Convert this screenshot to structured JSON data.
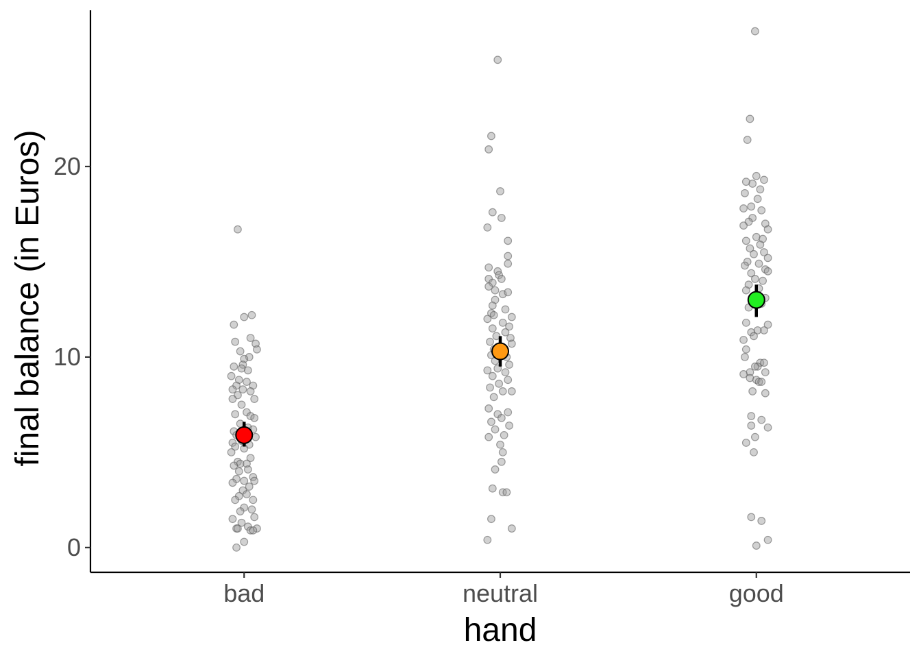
{
  "chart_data": {
    "type": "scatter",
    "xlabel": "hand",
    "ylabel": "final balance (in Euros)",
    "categories": [
      "bad",
      "neutral",
      "good"
    ],
    "ylim": [
      -1.3,
      28.2
    ],
    "yticks": [
      0,
      10,
      20
    ],
    "grid": false,
    "legend": "none",
    "colors": {
      "point": "#999999",
      "bad": "#ff0000",
      "neutral": "#ff9912",
      "good": "#22ee22"
    },
    "summary": [
      {
        "category": "bad",
        "mean": 5.9,
        "lower": 5.3,
        "upper": 6.6
      },
      {
        "category": "neutral",
        "mean": 10.3,
        "lower": 9.5,
        "upper": 11.1
      },
      {
        "category": "good",
        "mean": 13.0,
        "lower": 12.1,
        "upper": 13.8
      }
    ],
    "points": {
      "bad": [
        {
          "x": -0.05,
          "y": 16.7
        },
        {
          "x": 0.06,
          "y": 12.2
        },
        {
          "x": 0.0,
          "y": 12.1
        },
        {
          "x": -0.08,
          "y": 11.7
        },
        {
          "x": 0.05,
          "y": 11.0
        },
        {
          "x": -0.07,
          "y": 10.8
        },
        {
          "x": 0.09,
          "y": 10.7
        },
        {
          "x": 0.1,
          "y": 10.4
        },
        {
          "x": -0.03,
          "y": 10.3
        },
        {
          "x": 0.04,
          "y": 10.0
        },
        {
          "x": 0.0,
          "y": 9.9
        },
        {
          "x": -0.01,
          "y": 9.6
        },
        {
          "x": -0.08,
          "y": 9.5
        },
        {
          "x": -0.02,
          "y": 9.4
        },
        {
          "x": 0.03,
          "y": 9.3
        },
        {
          "x": -0.1,
          "y": 9.0
        },
        {
          "x": -0.04,
          "y": 8.8
        },
        {
          "x": 0.02,
          "y": 8.7
        },
        {
          "x": -0.06,
          "y": 8.5
        },
        {
          "x": 0.07,
          "y": 8.5
        },
        {
          "x": -0.09,
          "y": 8.3
        },
        {
          "x": -0.01,
          "y": 8.3
        },
        {
          "x": 0.05,
          "y": 8.2
        },
        {
          "x": -0.05,
          "y": 8.0
        },
        {
          "x": 0.08,
          "y": 7.8
        },
        {
          "x": -0.09,
          "y": 7.8
        },
        {
          "x": -0.02,
          "y": 7.5
        },
        {
          "x": 0.02,
          "y": 7.1
        },
        {
          "x": -0.07,
          "y": 7.0
        },
        {
          "x": 0.05,
          "y": 6.9
        },
        {
          "x": 0.08,
          "y": 6.8
        },
        {
          "x": -0.03,
          "y": 6.5
        },
        {
          "x": 0.03,
          "y": 6.3
        },
        {
          "x": -0.08,
          "y": 6.1
        },
        {
          "x": 0.07,
          "y": 6.2
        },
        {
          "x": -0.06,
          "y": 5.9
        },
        {
          "x": 0.09,
          "y": 5.8
        },
        {
          "x": -0.09,
          "y": 5.5
        },
        {
          "x": -0.02,
          "y": 5.6
        },
        {
          "x": 0.04,
          "y": 5.4
        },
        {
          "x": -0.07,
          "y": 5.3
        },
        {
          "x": 0.0,
          "y": 5.2
        },
        {
          "x": -0.1,
          "y": 5.0
        },
        {
          "x": 0.05,
          "y": 4.7
        },
        {
          "x": -0.05,
          "y": 4.5
        },
        {
          "x": -0.03,
          "y": 4.4
        },
        {
          "x": 0.02,
          "y": 4.4
        },
        {
          "x": -0.08,
          "y": 4.3
        },
        {
          "x": -0.04,
          "y": 4.0
        },
        {
          "x": 0.03,
          "y": 4.1
        },
        {
          "x": 0.07,
          "y": 3.7
        },
        {
          "x": -0.06,
          "y": 3.6
        },
        {
          "x": 0.0,
          "y": 3.5
        },
        {
          "x": -0.09,
          "y": 3.4
        },
        {
          "x": 0.08,
          "y": 3.5
        },
        {
          "x": -0.01,
          "y": 3.0
        },
        {
          "x": 0.04,
          "y": 3.2
        },
        {
          "x": 0.02,
          "y": 2.8
        },
        {
          "x": -0.04,
          "y": 2.7
        },
        {
          "x": 0.07,
          "y": 2.5
        },
        {
          "x": -0.07,
          "y": 2.5
        },
        {
          "x": 0.0,
          "y": 2.1
        },
        {
          "x": -0.03,
          "y": 1.9
        },
        {
          "x": 0.06,
          "y": 2.0
        },
        {
          "x": -0.09,
          "y": 1.5
        },
        {
          "x": 0.08,
          "y": 1.6
        },
        {
          "x": -0.02,
          "y": 1.3
        },
        {
          "x": 0.03,
          "y": 1.1
        },
        {
          "x": -0.06,
          "y": 1.0
        },
        {
          "x": 0.05,
          "y": 0.9
        },
        {
          "x": 0.1,
          "y": 1.0
        },
        {
          "x": -0.05,
          "y": 1.0
        },
        {
          "x": 0.0,
          "y": 0.3
        },
        {
          "x": -0.06,
          "y": 0.0
        },
        {
          "x": 0.07,
          "y": 0.9
        }
      ],
      "neutral": [
        {
          "x": -0.02,
          "y": 25.6
        },
        {
          "x": -0.07,
          "y": 21.6
        },
        {
          "x": -0.09,
          "y": 20.9
        },
        {
          "x": 0.0,
          "y": 18.7
        },
        {
          "x": -0.06,
          "y": 17.6
        },
        {
          "x": 0.01,
          "y": 17.3
        },
        {
          "x": -0.1,
          "y": 16.8
        },
        {
          "x": 0.06,
          "y": 16.1
        },
        {
          "x": 0.06,
          "y": 15.3
        },
        {
          "x": 0.06,
          "y": 14.9
        },
        {
          "x": -0.09,
          "y": 14.7
        },
        {
          "x": -0.02,
          "y": 14.5
        },
        {
          "x": -0.01,
          "y": 14.3
        },
        {
          "x": 0.01,
          "y": 14.1
        },
        {
          "x": -0.09,
          "y": 14.1
        },
        {
          "x": -0.06,
          "y": 13.9
        },
        {
          "x": -0.09,
          "y": 13.7
        },
        {
          "x": -0.04,
          "y": 13.5
        },
        {
          "x": 0.02,
          "y": 13.3
        },
        {
          "x": 0.06,
          "y": 13.4
        },
        {
          "x": -0.04,
          "y": 13.0
        },
        {
          "x": -0.06,
          "y": 12.7
        },
        {
          "x": 0.04,
          "y": 12.5
        },
        {
          "x": -0.07,
          "y": 12.3
        },
        {
          "x": -0.05,
          "y": 12.2
        },
        {
          "x": 0.09,
          "y": 12.1
        },
        {
          "x": -0.1,
          "y": 12.0
        },
        {
          "x": 0.02,
          "y": 11.8
        },
        {
          "x": 0.07,
          "y": 11.6
        },
        {
          "x": -0.06,
          "y": 11.5
        },
        {
          "x": 0.04,
          "y": 11.3
        },
        {
          "x": -0.03,
          "y": 11.1
        },
        {
          "x": 0.08,
          "y": 11.0
        },
        {
          "x": -0.08,
          "y": 10.8
        },
        {
          "x": 0.09,
          "y": 10.7
        },
        {
          "x": -0.05,
          "y": 10.4
        },
        {
          "x": 0.02,
          "y": 10.3
        },
        {
          "x": -0.07,
          "y": 10.1
        },
        {
          "x": 0.05,
          "y": 10.0
        },
        {
          "x": -0.04,
          "y": 9.8
        },
        {
          "x": 0.07,
          "y": 9.6
        },
        {
          "x": -0.02,
          "y": 9.4
        },
        {
          "x": -0.1,
          "y": 9.3
        },
        {
          "x": 0.04,
          "y": 9.2
        },
        {
          "x": -0.06,
          "y": 9.0
        },
        {
          "x": 0.06,
          "y": 8.8
        },
        {
          "x": -0.01,
          "y": 8.6
        },
        {
          "x": -0.08,
          "y": 8.4
        },
        {
          "x": 0.02,
          "y": 8.2
        },
        {
          "x": 0.09,
          "y": 8.2
        },
        {
          "x": -0.05,
          "y": 7.9
        },
        {
          "x": -0.09,
          "y": 7.3
        },
        {
          "x": 0.06,
          "y": 7.1
        },
        {
          "x": -0.02,
          "y": 7.0
        },
        {
          "x": 0.01,
          "y": 6.8
        },
        {
          "x": -0.07,
          "y": 6.6
        },
        {
          "x": 0.07,
          "y": 6.4
        },
        {
          "x": -0.04,
          "y": 6.2
        },
        {
          "x": 0.03,
          "y": 5.9
        },
        {
          "x": -0.09,
          "y": 5.8
        },
        {
          "x": 0.0,
          "y": 5.4
        },
        {
          "x": 0.02,
          "y": 5.0
        },
        {
          "x": 0.01,
          "y": 4.5
        },
        {
          "x": -0.04,
          "y": 4.1
        },
        {
          "x": -0.06,
          "y": 3.1
        },
        {
          "x": 0.02,
          "y": 2.9
        },
        {
          "x": 0.05,
          "y": 2.9
        },
        {
          "x": -0.07,
          "y": 1.5
        },
        {
          "x": 0.09,
          "y": 1.0
        },
        {
          "x": -0.1,
          "y": 0.4
        }
      ],
      "good": [
        {
          "x": -0.01,
          "y": 27.1
        },
        {
          "x": -0.05,
          "y": 22.5
        },
        {
          "x": -0.07,
          "y": 21.4
        },
        {
          "x": 0.0,
          "y": 19.5
        },
        {
          "x": -0.03,
          "y": 19.1
        },
        {
          "x": 0.06,
          "y": 19.3
        },
        {
          "x": -0.08,
          "y": 19.2
        },
        {
          "x": 0.03,
          "y": 18.8
        },
        {
          "x": -0.09,
          "y": 18.6
        },
        {
          "x": 0.01,
          "y": 18.3
        },
        {
          "x": -0.04,
          "y": 17.9
        },
        {
          "x": 0.04,
          "y": 17.7
        },
        {
          "x": -0.1,
          "y": 17.8
        },
        {
          "x": -0.03,
          "y": 17.3
        },
        {
          "x": 0.07,
          "y": 17.0
        },
        {
          "x": -0.06,
          "y": 17.1
        },
        {
          "x": 0.09,
          "y": 16.7
        },
        {
          "x": -0.1,
          "y": 16.9
        },
        {
          "x": 0.0,
          "y": 16.3
        },
        {
          "x": 0.05,
          "y": 16.2
        },
        {
          "x": -0.08,
          "y": 16.1
        },
        {
          "x": 0.03,
          "y": 15.9
        },
        {
          "x": -0.05,
          "y": 15.7
        },
        {
          "x": 0.06,
          "y": 15.5
        },
        {
          "x": -0.02,
          "y": 15.4
        },
        {
          "x": 0.09,
          "y": 15.2
        },
        {
          "x": -0.07,
          "y": 15.0
        },
        {
          "x": 0.02,
          "y": 14.9
        },
        {
          "x": -0.09,
          "y": 14.8
        },
        {
          "x": 0.07,
          "y": 14.6
        },
        {
          "x": -0.04,
          "y": 14.4
        },
        {
          "x": 0.09,
          "y": 14.5
        },
        {
          "x": -0.01,
          "y": 14.1
        },
        {
          "x": 0.05,
          "y": 14.0
        },
        {
          "x": -0.06,
          "y": 13.8
        },
        {
          "x": 0.02,
          "y": 13.6
        },
        {
          "x": -0.08,
          "y": 13.5
        },
        {
          "x": 0.07,
          "y": 13.1
        },
        {
          "x": -0.03,
          "y": 13.0
        },
        {
          "x": 0.04,
          "y": 12.8
        },
        {
          "x": -0.06,
          "y": 12.6
        },
        {
          "x": -0.08,
          "y": 11.8
        },
        {
          "x": 0.09,
          "y": 11.7
        },
        {
          "x": 0.06,
          "y": 11.4
        },
        {
          "x": -0.04,
          "y": 11.3
        },
        {
          "x": 0.01,
          "y": 11.4
        },
        {
          "x": -0.02,
          "y": 11.1
        },
        {
          "x": -0.1,
          "y": 10.9
        },
        {
          "x": -0.08,
          "y": 10.4
        },
        {
          "x": -0.09,
          "y": 10.0
        },
        {
          "x": 0.03,
          "y": 9.7
        },
        {
          "x": 0.06,
          "y": 9.7
        },
        {
          "x": 0.01,
          "y": 9.5
        },
        {
          "x": -0.01,
          "y": 9.5
        },
        {
          "x": -0.05,
          "y": 9.2
        },
        {
          "x": 0.07,
          "y": 9.2
        },
        {
          "x": -0.1,
          "y": 9.1
        },
        {
          "x": -0.05,
          "y": 8.9
        },
        {
          "x": 0.0,
          "y": 8.8
        },
        {
          "x": 0.02,
          "y": 8.7
        },
        {
          "x": 0.04,
          "y": 8.7
        },
        {
          "x": -0.03,
          "y": 8.2
        },
        {
          "x": 0.07,
          "y": 8.1
        },
        {
          "x": -0.04,
          "y": 6.9
        },
        {
          "x": 0.04,
          "y": 6.7
        },
        {
          "x": -0.04,
          "y": 6.4
        },
        {
          "x": 0.09,
          "y": 6.3
        },
        {
          "x": -0.01,
          "y": 5.8
        },
        {
          "x": -0.08,
          "y": 5.5
        },
        {
          "x": -0.02,
          "y": 5.0
        },
        {
          "x": -0.04,
          "y": 1.6
        },
        {
          "x": 0.04,
          "y": 1.4
        },
        {
          "x": 0.09,
          "y": 0.4
        },
        {
          "x": 0.0,
          "y": 0.1
        }
      ]
    }
  }
}
